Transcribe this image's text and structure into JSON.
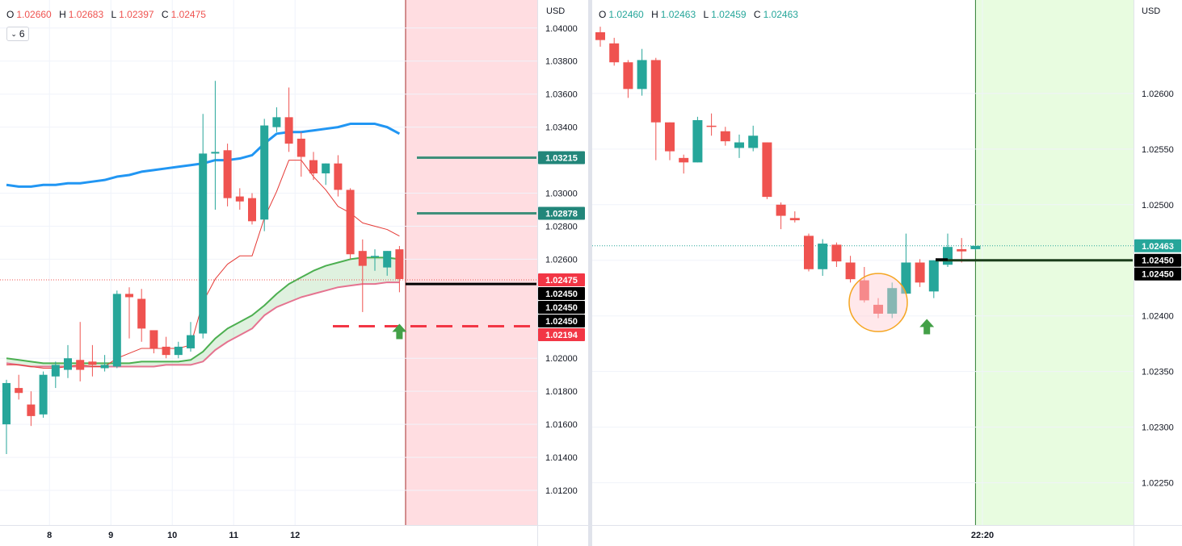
{
  "left": {
    "ohlc": {
      "o_label": "O",
      "o": "1.02660",
      "h_label": "H",
      "h": "1.02683",
      "l_label": "L",
      "l": "1.02397",
      "c_label": "C",
      "c": "1.02475"
    },
    "indicator_count": "6",
    "currency": "USD",
    "colors": {
      "up": "#26a69a",
      "down": "#ef5350",
      "ma_blue": "#2196f3",
      "ma_green": "#4caf50",
      "ma_pink": "#e57390",
      "ma_red": "#e53935",
      "red_zone": "#ffdde1"
    },
    "price_labels": [
      {
        "value": 1.03215,
        "text": "1.03215",
        "bg": "#22867a",
        "fg": "#ffffff"
      },
      {
        "value": 1.02878,
        "text": "1.02878",
        "bg": "#22867a",
        "fg": "#ffffff"
      },
      {
        "value": 1.02475,
        "text": "1.02475",
        "bg": "#f23645",
        "fg": "#ffffff"
      },
      {
        "value": 1.0245,
        "text": "1.02450",
        "bg": "#000000",
        "fg": "#ffffff"
      },
      {
        "value": 1.0245,
        "text": "1.02450",
        "bg": "#000000",
        "fg": "#ffffff"
      },
      {
        "value": 1.0245,
        "text": "1.02450",
        "bg": "#000000",
        "fg": "#ffffff"
      },
      {
        "value": 1.02194,
        "text": "1.02194",
        "bg": "#f23645",
        "fg": "#ffffff"
      }
    ]
  },
  "right": {
    "ohlc": {
      "o_label": "O",
      "o": "1.02460",
      "h_label": "H",
      "h": "1.02463",
      "l_label": "L",
      "l": "1.02459",
      "c_label": "C",
      "c": "1.02463"
    },
    "currency": "USD",
    "colors": {
      "up": "#26a69a",
      "down": "#ef5350",
      "green_zone": "#e8fce0",
      "circle": "#f5a623"
    },
    "price_labels": [
      {
        "value": 1.02463,
        "text": "1.02463",
        "bg": "#26a69a",
        "fg": "#ffffff"
      },
      {
        "value": 1.0245,
        "text": "1.02450",
        "bg": "#000000",
        "fg": "#ffffff"
      },
      {
        "value": 1.0245,
        "text": "1.02450",
        "bg": "#000000",
        "fg": "#ffffff"
      }
    ]
  },
  "chart_data": [
    {
      "type": "candlestick",
      "yticks": [
        "1.04000",
        "1.03800",
        "1.03600",
        "1.03400",
        "1.03000",
        "1.02800",
        "1.02600",
        "1.02000",
        "1.01800",
        "1.01600",
        "1.01400",
        "1.01200"
      ],
      "ytick_values": [
        1.04,
        1.038,
        1.036,
        1.034,
        1.03,
        1.028,
        1.026,
        1.02,
        1.018,
        1.016,
        1.014,
        1.012
      ],
      "ylim": [
        1.0099,
        1.0417
      ],
      "xticks": [
        {
          "label": "8",
          "index": 3.5
        },
        {
          "label": "9",
          "index": 8.5
        },
        {
          "label": "10",
          "index": 13.5
        },
        {
          "label": "11",
          "index": 18.5
        },
        {
          "label": "12",
          "index": 23.5
        }
      ],
      "candles": [
        {
          "o": 1.016,
          "h": 1.0187,
          "l": 1.0142,
          "c": 1.0185
        },
        {
          "o": 1.0182,
          "h": 1.019,
          "l": 1.0175,
          "c": 1.0179
        },
        {
          "o": 1.0172,
          "h": 1.018,
          "l": 1.0159,
          "c": 1.0165
        },
        {
          "o": 1.0166,
          "h": 1.0192,
          "l": 1.0164,
          "c": 1.019
        },
        {
          "o": 1.0189,
          "h": 1.0198,
          "l": 1.0182,
          "c": 1.0196
        },
        {
          "o": 1.0193,
          "h": 1.0208,
          "l": 1.0188,
          "c": 1.02
        },
        {
          "o": 1.0199,
          "h": 1.0222,
          "l": 1.0186,
          "c": 1.0193
        },
        {
          "o": 1.0198,
          "h": 1.0208,
          "l": 1.0189,
          "c": 1.0196
        },
        {
          "o": 1.0194,
          "h": 1.0202,
          "l": 1.0192,
          "c": 1.0196
        },
        {
          "o": 1.0195,
          "h": 1.0241,
          "l": 1.0194,
          "c": 1.0239
        },
        {
          "o": 1.0239,
          "h": 1.0243,
          "l": 1.0212,
          "c": 1.0237
        },
        {
          "o": 1.0236,
          "h": 1.0242,
          "l": 1.021,
          "c": 1.0218
        },
        {
          "o": 1.0217,
          "h": 1.0216,
          "l": 1.0203,
          "c": 1.0206
        },
        {
          "o": 1.0207,
          "h": 1.0213,
          "l": 1.02,
          "c": 1.0202
        },
        {
          "o": 1.0202,
          "h": 1.021,
          "l": 1.02,
          "c": 1.0207
        },
        {
          "o": 1.0206,
          "h": 1.0222,
          "l": 1.0204,
          "c": 1.0214
        },
        {
          "o": 1.0215,
          "h": 1.0348,
          "l": 1.0212,
          "c": 1.0324
        },
        {
          "o": 1.0324,
          "h": 1.0368,
          "l": 1.029,
          "c": 1.0325
        },
        {
          "o": 1.0326,
          "h": 1.033,
          "l": 1.0292,
          "c": 1.0297
        },
        {
          "o": 1.0298,
          "h": 1.0303,
          "l": 1.029,
          "c": 1.0295
        },
        {
          "o": 1.0297,
          "h": 1.03,
          "l": 1.0281,
          "c": 1.0283
        },
        {
          "o": 1.0284,
          "h": 1.0345,
          "l": 1.0277,
          "c": 1.0341
        },
        {
          "o": 1.034,
          "h": 1.0352,
          "l": 1.0337,
          "c": 1.0346
        },
        {
          "o": 1.0346,
          "h": 1.0364,
          "l": 1.0325,
          "c": 1.033
        },
        {
          "o": 1.0333,
          "h": 1.0337,
          "l": 1.031,
          "c": 1.0322
        },
        {
          "o": 1.032,
          "h": 1.0325,
          "l": 1.0308,
          "c": 1.0312
        },
        {
          "o": 1.0312,
          "h": 1.0318,
          "l": 1.0305,
          "c": 1.0318
        },
        {
          "o": 1.0318,
          "h": 1.0323,
          "l": 1.0298,
          "c": 1.0302
        },
        {
          "o": 1.0302,
          "h": 1.0303,
          "l": 1.026,
          "c": 1.0263
        },
        {
          "o": 1.0265,
          "h": 1.0272,
          "l": 1.0228,
          "c": 1.0256
        },
        {
          "o": 1.0262,
          "h": 1.0266,
          "l": 1.0253,
          "c": 1.0262
        },
        {
          "o": 1.0255,
          "h": 1.0265,
          "l": 1.025,
          "c": 1.0265
        },
        {
          "o": 1.0266,
          "h": 1.0268,
          "l": 1.024,
          "c": 1.0248
        }
      ],
      "series": [
        {
          "name": "",
          "color": "#2196f3",
          "values": [
            1.0305,
            1.0304,
            1.0304,
            1.0305,
            1.0305,
            1.0306,
            1.0306,
            1.0307,
            1.0308,
            1.031,
            1.0311,
            1.0313,
            1.0314,
            1.0315,
            1.0316,
            1.0317,
            1.0318,
            1.032,
            1.032,
            1.0321,
            1.0323,
            1.033,
            1.0336,
            1.0337,
            1.0337,
            1.0338,
            1.0339,
            1.034,
            1.0342,
            1.0342,
            1.0342,
            1.034,
            1.0336
          ]
        },
        {
          "name": "",
          "color": "#4caf50",
          "values": [
            1.02,
            1.0199,
            1.0198,
            1.0197,
            1.0197,
            1.0197,
            1.0197,
            1.0197,
            1.0197,
            1.0197,
            1.0197,
            1.0198,
            1.0198,
            1.0198,
            1.0198,
            1.0199,
            1.0204,
            1.0212,
            1.0218,
            1.0222,
            1.0226,
            1.0232,
            1.0239,
            1.0245,
            1.0249,
            1.0253,
            1.0256,
            1.0258,
            1.026,
            1.0261,
            1.0261,
            1.0261,
            1.026
          ]
        },
        {
          "name": "",
          "color": "#e57390",
          "values": [
            1.0197,
            1.0196,
            1.0195,
            1.0195,
            1.0195,
            1.0195,
            1.0195,
            1.0195,
            1.0195,
            1.0195,
            1.0195,
            1.0195,
            1.0195,
            1.0196,
            1.0196,
            1.0196,
            1.0198,
            1.0205,
            1.021,
            1.0214,
            1.0218,
            1.0226,
            1.0231,
            1.0234,
            1.0237,
            1.0239,
            1.0241,
            1.0243,
            1.0244,
            1.0245,
            1.0245,
            1.0246,
            1.0246
          ]
        },
        {
          "name": "",
          "color": "#e53935",
          "values": [
            1.0196,
            1.0196,
            1.0195,
            1.0194,
            1.0194,
            1.0195,
            1.0196,
            1.0195,
            1.0195,
            1.02,
            1.0203,
            1.0206,
            1.0206,
            1.0206,
            1.0206,
            1.0208,
            1.0234,
            1.0248,
            1.0257,
            1.0262,
            1.0262,
            1.0285,
            1.0301,
            1.032,
            1.032,
            1.031,
            1.0302,
            1.0292,
            1.0288,
            1.0282,
            1.028,
            1.0278,
            1.0274
          ]
        }
      ],
      "levels": [
        {
          "value": 1.03215,
          "color": "#3f8f7a",
          "style": "solid"
        },
        {
          "value": 1.02878,
          "color": "#3f8f7a",
          "style": "solid"
        },
        {
          "value": 1.0245,
          "color": "#000000",
          "style": "solid"
        },
        {
          "value": 1.02194,
          "color": "#f23645",
          "style": "dashed"
        }
      ],
      "current_price": 1.02475,
      "zone": {
        "color": "#ffdde1",
        "from_index": 33
      },
      "arrow": {
        "index": 32,
        "value": 1.0216,
        "direction": "up",
        "color": "#43a047"
      }
    },
    {
      "type": "candlestick",
      "yticks": [
        "1.02600",
        "1.02550",
        "1.02500",
        "1.02450",
        "1.02400",
        "1.02350",
        "1.02300",
        "1.02250"
      ],
      "ytick_values": [
        1.026,
        1.0255,
        1.025,
        1.0245,
        1.024,
        1.0235,
        1.023,
        1.0225
      ],
      "ylim": [
        1.02212,
        1.02684
      ],
      "xticks": [
        {
          "label": "22:20",
          "index": 27.5
        }
      ],
      "candles": [
        {
          "o": 1.02655,
          "h": 1.0266,
          "l": 1.02642,
          "c": 1.02648
        },
        {
          "o": 1.02645,
          "h": 1.0265,
          "l": 1.02625,
          "c": 1.02628
        },
        {
          "o": 1.02628,
          "h": 1.0263,
          "l": 1.02596,
          "c": 1.02604
        },
        {
          "o": 1.02604,
          "h": 1.0264,
          "l": 1.02598,
          "c": 1.0263
        },
        {
          "o": 1.0263,
          "h": 1.02632,
          "l": 1.0254,
          "c": 1.02574
        },
        {
          "o": 1.02574,
          "h": 1.02574,
          "l": 1.0254,
          "c": 1.02548
        },
        {
          "o": 1.02542,
          "h": 1.02545,
          "l": 1.02528,
          "c": 1.02538
        },
        {
          "o": 1.02538,
          "h": 1.02579,
          "l": 1.02538,
          "c": 1.02576
        },
        {
          "o": 1.02571,
          "h": 1.02582,
          "l": 1.02562,
          "c": 1.0257
        },
        {
          "o": 1.02566,
          "h": 1.0257,
          "l": 1.02553,
          "c": 1.02557
        },
        {
          "o": 1.02551,
          "h": 1.02563,
          "l": 1.02542,
          "c": 1.02556
        },
        {
          "o": 1.02551,
          "h": 1.02571,
          "l": 1.02548,
          "c": 1.02562
        },
        {
          "o": 1.02556,
          "h": 1.02556,
          "l": 1.02505,
          "c": 1.02507
        },
        {
          "o": 1.025,
          "h": 1.02502,
          "l": 1.02478,
          "c": 1.0249
        },
        {
          "o": 1.02488,
          "h": 1.02494,
          "l": 1.02484,
          "c": 1.02486
        },
        {
          "o": 1.02472,
          "h": 1.02474,
          "l": 1.0244,
          "c": 1.02442
        },
        {
          "o": 1.02442,
          "h": 1.02469,
          "l": 1.02436,
          "c": 1.02465
        },
        {
          "o": 1.02464,
          "h": 1.02466,
          "l": 1.02444,
          "c": 1.02449
        },
        {
          "o": 1.02448,
          "h": 1.02454,
          "l": 1.0243,
          "c": 1.02433
        },
        {
          "o": 1.02432,
          "h": 1.02444,
          "l": 1.02412,
          "c": 1.02414
        },
        {
          "o": 1.0241,
          "h": 1.02416,
          "l": 1.02398,
          "c": 1.02402
        },
        {
          "o": 1.02402,
          "h": 1.0243,
          "l": 1.02398,
          "c": 1.02425
        },
        {
          "o": 1.0242,
          "h": 1.02474,
          "l": 1.02419,
          "c": 1.02448
        },
        {
          "o": 1.02448,
          "h": 1.02451,
          "l": 1.02426,
          "c": 1.0243
        },
        {
          "o": 1.02422,
          "h": 1.0245,
          "l": 1.02416,
          "c": 1.0245
        },
        {
          "o": 1.02446,
          "h": 1.02474,
          "l": 1.02444,
          "c": 1.02462
        },
        {
          "o": 1.0246,
          "h": 1.0247,
          "l": 1.02448,
          "c": 1.02458
        },
        {
          "o": 1.0246,
          "h": 1.02463,
          "l": 1.02459,
          "c": 1.02463
        }
      ],
      "levels": [
        {
          "value": 1.0245,
          "color": "#1b3d1b",
          "style": "solid"
        }
      ],
      "current_price": 1.02463,
      "zone": {
        "color": "#e8fce0",
        "from_index": 27.5
      },
      "circle": {
        "index": 20,
        "value": 1.02412,
        "color": "#f5a623"
      },
      "arrow": {
        "index": 23.5,
        "value": 1.0239,
        "direction": "up",
        "color": "#43a047"
      }
    }
  ]
}
